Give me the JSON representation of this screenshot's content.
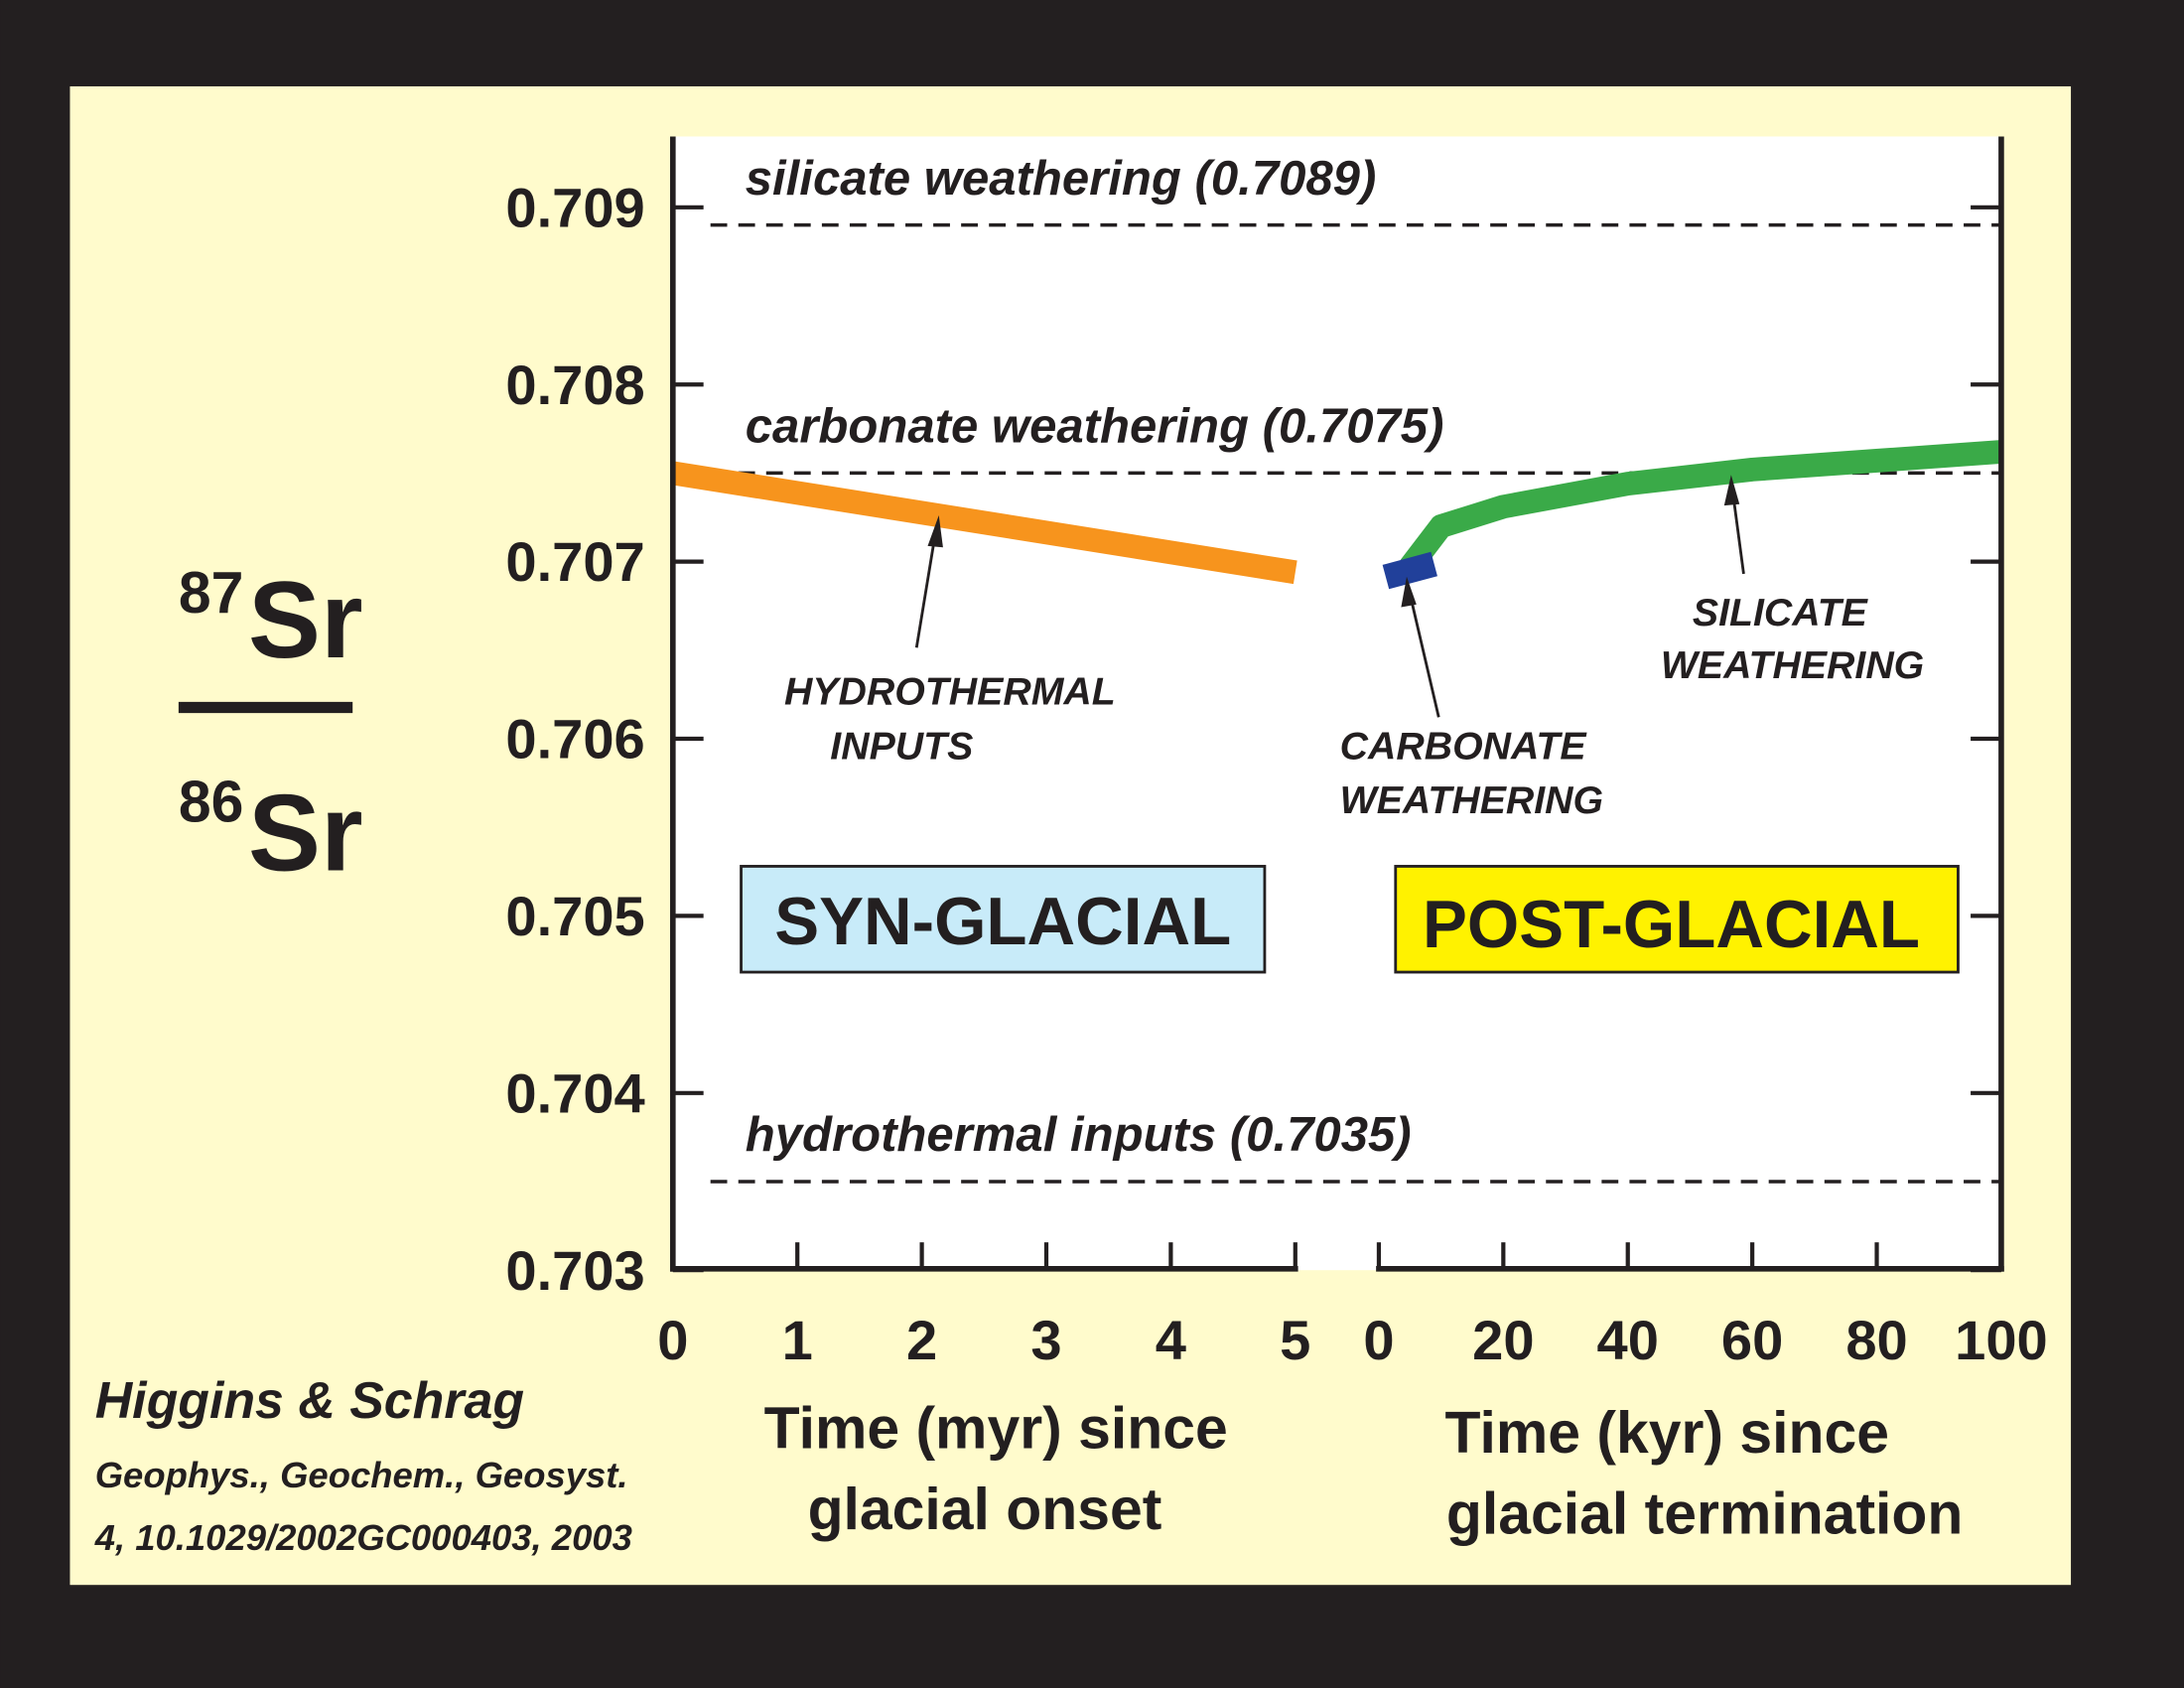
{
  "chart_data": [
    {
      "type": "line",
      "ylabel": {
        "numerator_mass": "87",
        "numerator": "Sr",
        "denominator_mass": "86",
        "denominator": "Sr"
      },
      "ylim": [
        0.703,
        0.7094
      ],
      "yticks": [
        0.703,
        0.704,
        0.705,
        0.706,
        0.707,
        0.708,
        0.709
      ],
      "xlim": [
        0,
        5
      ],
      "xticks": [
        0,
        1,
        2,
        3,
        4,
        5
      ],
      "xlabel": [
        "Time (myr) since",
        "glacial onset"
      ],
      "reference_lines": [
        {
          "value": 0.7089,
          "label": "silicate weathering (0.7089)"
        },
        {
          "value": 0.7075,
          "label": "carbonate weathering (0.7075)"
        },
        {
          "value": 0.7035,
          "label": "hydrothermal inputs (0.7035)"
        }
      ],
      "series": [
        {
          "color": "#f7941d",
          "x": [
            0,
            5
          ],
          "values": [
            0.7075,
            0.70694
          ]
        }
      ],
      "phase": "SYN-GLACIAL",
      "phase_color": "#c8ebf9",
      "annotations": [
        {
          "lines": [
            "HYDROTHERMAL",
            "INPUTS"
          ]
        }
      ]
    },
    {
      "type": "line",
      "ylim": [
        0.703,
        0.7094
      ],
      "yticks": [
        0.703,
        0.704,
        0.705,
        0.706,
        0.707,
        0.708,
        0.709
      ],
      "xlim": [
        0,
        100
      ],
      "xticks": [
        0,
        20,
        40,
        60,
        80,
        100
      ],
      "xlabel": [
        "Time (kyr) since",
        "glacial termination"
      ],
      "series": [
        {
          "color": "#3aaa48",
          "x": [
            5,
            10,
            20,
            40,
            60,
            80,
            100
          ],
          "values": [
            0.70697,
            0.7072,
            0.70731,
            0.70744,
            0.70752,
            0.70757,
            0.70762
          ]
        },
        {
          "color": "#21409a",
          "marker": "square",
          "x": [
            5
          ],
          "values": [
            0.70695
          ]
        }
      ],
      "phase": "POST-GLACIAL",
      "phase_color": "#fff200",
      "annotations": [
        {
          "lines": [
            "CARBONATE",
            "WEATHERING"
          ]
        },
        {
          "lines": [
            "SILICATE",
            "WEATHERING"
          ]
        }
      ]
    }
  ],
  "citation": {
    "authors": "Higgins & Schrag",
    "journal": "Geophys., Geochem., Geosyst.",
    "reference": "4, 10.1029/2002GC000403, 2003"
  }
}
